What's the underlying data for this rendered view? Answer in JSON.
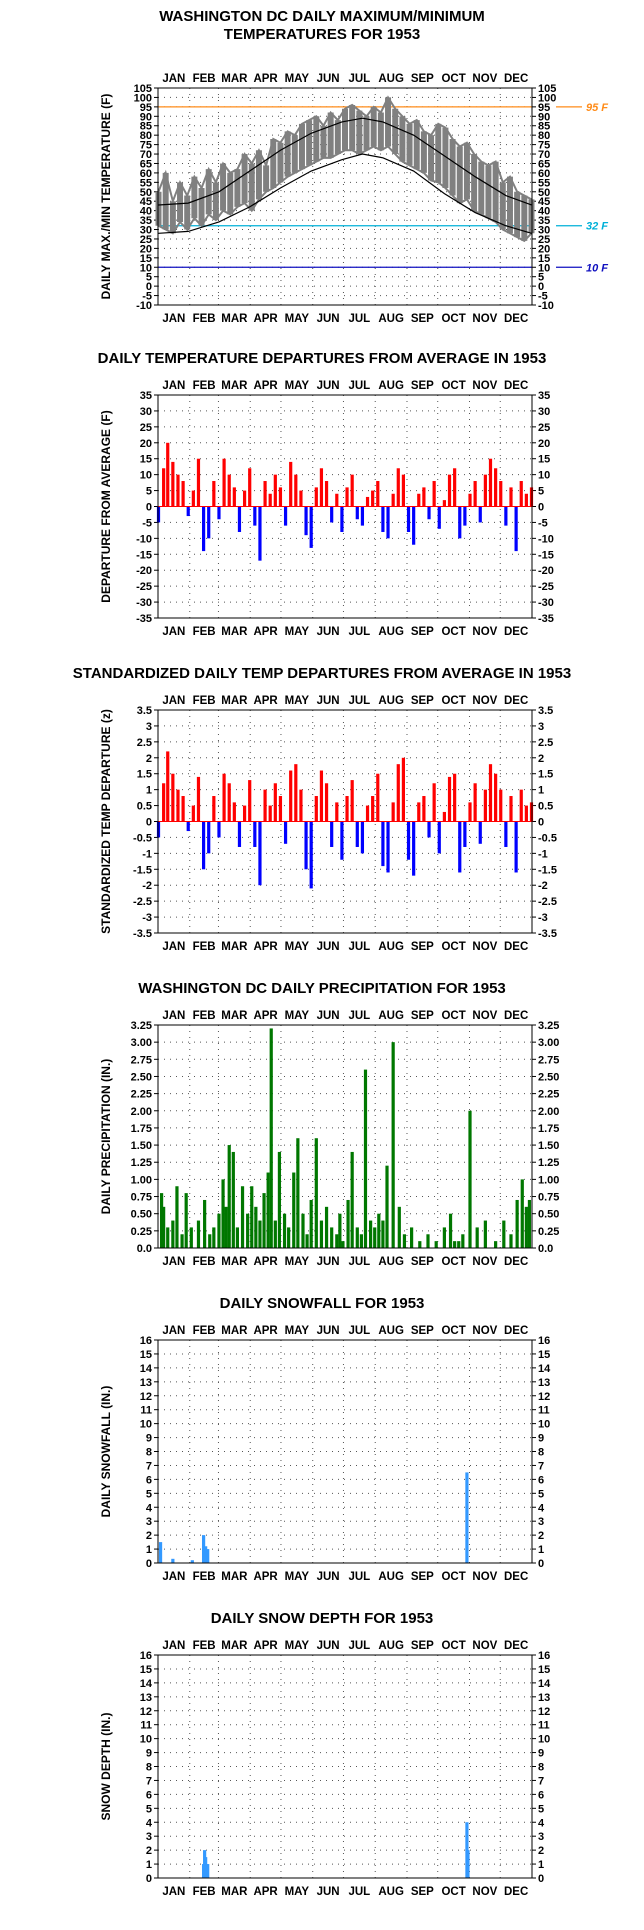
{
  "months": [
    "JAN",
    "FEB",
    "MAR",
    "APR",
    "MAY",
    "JUN",
    "JUL",
    "AUG",
    "SEP",
    "OCT",
    "NOV",
    "DEC"
  ],
  "colors": {
    "max_min": "#808080",
    "normal": "#000000",
    "ref95": "#ff8c1a",
    "ref32": "#00b0d8",
    "ref10": "#1010c0",
    "pos": "#ff0000",
    "neg": "#0000ff",
    "precip": "#007700",
    "snow": "#3399ff",
    "grid": "#555555"
  },
  "chart_data": [
    {
      "id": "temp",
      "type": "line",
      "title": [
        "WASHINGTON DC DAILY MAXIMUM/MINIMUM",
        "TEMPERATURES FOR 1953"
      ],
      "ylabel": "DAILY MAX./MIN TEMPERATURE (F)",
      "ylim": [
        -10,
        105
      ],
      "yticks": [
        -10,
        -5,
        0,
        5,
        10,
        15,
        20,
        25,
        30,
        35,
        40,
        45,
        50,
        55,
        60,
        65,
        70,
        75,
        80,
        85,
        90,
        95,
        100,
        105
      ],
      "ref_lines": [
        {
          "value": 95,
          "label": "95 F",
          "color": "#ff8c1a"
        },
        {
          "value": 32,
          "label": "32 F",
          "color": "#00b0d8"
        },
        {
          "value": 10,
          "label": "10 F",
          "color": "#1010c0"
        }
      ],
      "normal_max": {
        "doy": [
          1,
          30,
          60,
          90,
          120,
          150,
          180,
          200,
          220,
          250,
          280,
          310,
          340,
          365
        ],
        "value": [
          43,
          44,
          50,
          61,
          72,
          81,
          87,
          89,
          87,
          80,
          69,
          58,
          48,
          43
        ]
      },
      "normal_min": {
        "doy": [
          1,
          30,
          60,
          90,
          120,
          150,
          180,
          200,
          220,
          250,
          280,
          310,
          340,
          365
        ],
        "value": [
          28,
          29,
          34,
          42,
          52,
          61,
          67,
          70,
          68,
          61,
          49,
          39,
          32,
          28
        ]
      },
      "observed": {
        "doy": [
          1,
          8,
          15,
          22,
          29,
          36,
          43,
          50,
          57,
          64,
          71,
          78,
          85,
          92,
          99,
          106,
          113,
          120,
          127,
          134,
          141,
          148,
          155,
          162,
          169,
          176,
          183,
          190,
          197,
          204,
          211,
          218,
          225,
          232,
          239,
          246,
          253,
          260,
          267,
          274,
          281,
          288,
          295,
          302,
          309,
          316,
          323,
          330,
          337,
          344,
          351,
          358,
          365
        ],
        "max": [
          50,
          60,
          45,
          55,
          48,
          58,
          52,
          62,
          55,
          65,
          60,
          62,
          70,
          65,
          72,
          64,
          78,
          76,
          82,
          80,
          86,
          88,
          90,
          85,
          92,
          88,
          94,
          96,
          93,
          90,
          95,
          92,
          100,
          94,
          90,
          86,
          88,
          82,
          80,
          86,
          84,
          78,
          74,
          76,
          70,
          66,
          64,
          66,
          55,
          58,
          50,
          48,
          46
        ],
        "min": [
          32,
          30,
          28,
          34,
          30,
          36,
          32,
          38,
          35,
          40,
          38,
          42,
          44,
          40,
          46,
          50,
          52,
          55,
          58,
          60,
          62,
          64,
          66,
          68,
          68,
          70,
          72,
          72,
          70,
          72,
          74,
          72,
          74,
          70,
          66,
          64,
          62,
          60,
          56,
          55,
          52,
          48,
          44,
          46,
          40,
          38,
          36,
          34,
          30,
          28,
          26,
          24,
          28
        ]
      }
    },
    {
      "id": "dep",
      "type": "bar",
      "title": [
        "DAILY TEMPERATURE DEPARTURES FROM AVERAGE IN 1953"
      ],
      "ylabel": "DEPARTURE FROM AVERAGE (F)",
      "ylim": [
        -35,
        35
      ],
      "yticks": [
        -35,
        -30,
        -25,
        -20,
        -15,
        -10,
        -5,
        0,
        5,
        10,
        15,
        20,
        25,
        30,
        35
      ],
      "x": [
        1,
        6,
        10,
        15,
        20,
        25,
        30,
        35,
        40,
        45,
        50,
        55,
        60,
        65,
        70,
        75,
        80,
        85,
        90,
        95,
        100,
        105,
        110,
        115,
        120,
        125,
        130,
        135,
        140,
        145,
        150,
        155,
        160,
        165,
        170,
        175,
        180,
        185,
        190,
        195,
        200,
        205,
        210,
        215,
        220,
        225,
        230,
        235,
        240,
        245,
        250,
        255,
        260,
        265,
        270,
        275,
        280,
        285,
        290,
        295,
        300,
        305,
        310,
        315,
        320,
        325,
        330,
        335,
        340,
        345,
        350,
        355,
        360,
        365
      ],
      "values": [
        -5,
        12,
        20,
        14,
        10,
        8,
        -3,
        5,
        15,
        -14,
        -10,
        8,
        -4,
        15,
        10,
        6,
        -8,
        5,
        12,
        -6,
        -17,
        8,
        4,
        10,
        6,
        -6,
        14,
        10,
        5,
        -9,
        -13,
        6,
        12,
        8,
        -5,
        4,
        -8,
        6,
        10,
        -4,
        -6,
        3,
        5,
        8,
        -8,
        -10,
        4,
        12,
        10,
        -8,
        -12,
        4,
        6,
        -4,
        8,
        -7,
        2,
        10,
        12,
        -10,
        -6,
        4,
        8,
        -5,
        10,
        15,
        12,
        8,
        -6,
        6,
        -14,
        8,
        4,
        6
      ],
      "pos_color": "#ff0000",
      "neg_color": "#0000ff"
    },
    {
      "id": "std",
      "type": "bar",
      "title": [
        "STANDARDIZED DAILY TEMP DEPARTURES FROM AVERAGE IN 1953"
      ],
      "ylabel": "STANDARDIZED TEMP DEPARTURE (z)",
      "ylim": [
        -3.5,
        3.5
      ],
      "yticks": [
        -3.5,
        -3.0,
        -2.5,
        -2.0,
        -1.5,
        -1.0,
        -0.5,
        0.0,
        0.5,
        1.0,
        1.5,
        2.0,
        2.5,
        3.0,
        3.5
      ],
      "x": [
        1,
        6,
        10,
        15,
        20,
        25,
        30,
        35,
        40,
        45,
        50,
        55,
        60,
        65,
        70,
        75,
        80,
        85,
        90,
        95,
        100,
        105,
        110,
        115,
        120,
        125,
        130,
        135,
        140,
        145,
        150,
        155,
        160,
        165,
        170,
        175,
        180,
        185,
        190,
        195,
        200,
        205,
        210,
        215,
        220,
        225,
        230,
        235,
        240,
        245,
        250,
        255,
        260,
        265,
        270,
        275,
        280,
        285,
        290,
        295,
        300,
        305,
        310,
        315,
        320,
        325,
        330,
        335,
        340,
        345,
        350,
        355,
        360,
        365
      ],
      "values": [
        -0.5,
        1.2,
        2.2,
        1.5,
        1.0,
        0.8,
        -0.3,
        0.5,
        1.4,
        -1.5,
        -1.0,
        0.8,
        -0.5,
        1.5,
        1.2,
        0.6,
        -0.8,
        0.5,
        1.3,
        -0.8,
        -2.0,
        1.0,
        0.5,
        1.2,
        0.8,
        -0.7,
        1.6,
        1.8,
        1.0,
        -1.5,
        -2.1,
        0.8,
        1.6,
        1.2,
        -0.8,
        0.6,
        -1.2,
        0.8,
        1.3,
        -0.8,
        -1.0,
        0.5,
        0.8,
        1.5,
        -1.4,
        -1.6,
        0.6,
        1.8,
        2.0,
        -1.2,
        -1.7,
        0.6,
        0.8,
        -0.5,
        1.2,
        -1.0,
        0.3,
        1.4,
        1.5,
        -1.6,
        -0.8,
        0.6,
        1.2,
        -0.7,
        1.0,
        1.8,
        1.5,
        1.0,
        -0.8,
        0.8,
        -1.6,
        1.0,
        0.5,
        0.6
      ],
      "pos_color": "#ff0000",
      "neg_color": "#0000ff"
    },
    {
      "id": "precip",
      "type": "bar",
      "title": [
        "WASHINGTON DC DAILY PRECIPITATION FOR 1953"
      ],
      "ylabel": "DAILY PRECIPITATION (IN.)",
      "ylim": [
        0,
        3.25
      ],
      "yticks": [
        0.0,
        0.25,
        0.5,
        0.75,
        1.0,
        1.25,
        1.5,
        1.75,
        2.0,
        2.25,
        2.5,
        2.75,
        3.0,
        3.25
      ],
      "tick_labels": [
        "0.0",
        "0.25",
        "0.50",
        "0.75",
        "1.00",
        "1.25",
        "1.50",
        "1.75",
        "2.00",
        "2.25",
        "2.50",
        "2.75",
        "3.00",
        "3.25"
      ],
      "x": [
        4,
        6,
        10,
        15,
        19,
        24,
        28,
        33,
        40,
        46,
        51,
        55,
        60,
        64,
        67,
        70,
        74,
        78,
        83,
        88,
        92,
        96,
        100,
        104,
        108,
        111,
        115,
        119,
        124,
        128,
        133,
        137,
        142,
        146,
        150,
        155,
        160,
        165,
        170,
        175,
        178,
        181,
        186,
        190,
        195,
        199,
        203,
        208,
        212,
        216,
        220,
        224,
        230,
        236,
        241,
        248,
        256,
        264,
        272,
        280,
        286,
        290,
        294,
        298,
        305,
        312,
        320,
        330,
        338,
        345,
        351,
        356,
        360,
        363
      ],
      "values": [
        0.8,
        0.6,
        0.3,
        0.4,
        0.9,
        0.2,
        0.8,
        0.3,
        0.4,
        0.7,
        0.2,
        0.3,
        0.5,
        1.0,
        0.6,
        1.5,
        1.4,
        0.3,
        0.9,
        0.5,
        0.9,
        0.6,
        0.4,
        0.8,
        1.1,
        3.2,
        0.4,
        1.4,
        0.5,
        0.3,
        1.1,
        1.6,
        0.5,
        0.2,
        0.7,
        1.6,
        0.4,
        0.6,
        0.3,
        0.2,
        0.5,
        0.1,
        0.7,
        1.4,
        0.3,
        0.2,
        2.6,
        0.4,
        0.3,
        0.5,
        0.4,
        1.2,
        3.0,
        0.6,
        0.2,
        0.3,
        0.1,
        0.2,
        0.1,
        0.3,
        0.5,
        0.1,
        0.1,
        0.2,
        2.0,
        0.3,
        0.4,
        0.1,
        0.4,
        0.2,
        0.7,
        1.0,
        0.6,
        0.7
      ],
      "bar_color": "#007700"
    },
    {
      "id": "snow",
      "type": "bar",
      "title": [
        "DAILY SNOWFALL FOR 1953"
      ],
      "ylabel": "DAILY SNOWFALL (IN.)",
      "ylim": [
        0,
        16
      ],
      "yticks": [
        0,
        1,
        2,
        3,
        4,
        5,
        6,
        7,
        8,
        9,
        10,
        11,
        12,
        13,
        14,
        15,
        16
      ],
      "x": [
        3,
        15,
        34,
        45,
        47,
        49,
        302
      ],
      "values": [
        1.5,
        0.3,
        0.2,
        2.0,
        1.2,
        1.0,
        6.5
      ],
      "bar_color": "#3399ff"
    },
    {
      "id": "depth",
      "type": "bar",
      "title": [
        "DAILY SNOW DEPTH FOR 1953"
      ],
      "ylabel": "SNOW DEPTH (IN.)",
      "ylim": [
        0,
        16
      ],
      "yticks": [
        0,
        1,
        2,
        3,
        4,
        5,
        6,
        7,
        8,
        9,
        10,
        11,
        12,
        13,
        14,
        15,
        16
      ],
      "x": [
        45,
        46,
        47,
        48,
        49,
        302,
        303
      ],
      "values": [
        1.0,
        2.0,
        1.5,
        1.0,
        1.0,
        4.0,
        2.0
      ],
      "bar_color": "#3399ff"
    }
  ]
}
